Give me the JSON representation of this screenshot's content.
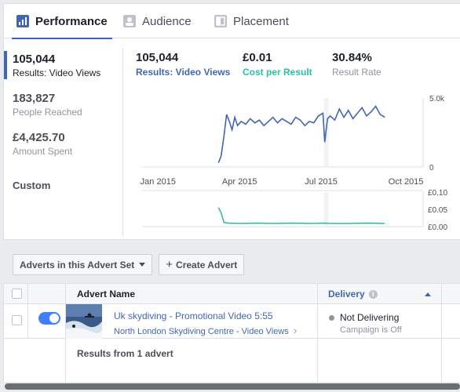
{
  "tabs": [
    {
      "label": "Performance",
      "icon": "bar-chart-icon",
      "active": true
    },
    {
      "label": "Audience",
      "icon": "audience-icon",
      "active": false
    },
    {
      "label": "Placement",
      "icon": "placement-icon",
      "active": false
    }
  ],
  "metrics": [
    {
      "value": "105,044",
      "label": "Results: Video Views",
      "selected": true
    },
    {
      "value": "183,827",
      "label": "People Reached",
      "selected": false
    },
    {
      "value": "£4,425.70",
      "label": "Amount Spent",
      "selected": false
    }
  ],
  "custom_label": "Custom",
  "summary": [
    {
      "value": "105,044",
      "label": "Results: Video Views",
      "color": "#4267b2"
    },
    {
      "value": "£0.01",
      "label": "Cost per Result",
      "color": "#2bbfa4"
    },
    {
      "value": "30.84%",
      "label": "Result Rate",
      "color": "#90949c"
    }
  ],
  "chart_data": [
    {
      "type": "line",
      "series": [
        {
          "name": "Results: Video Views",
          "color": "#4267b2"
        }
      ],
      "x_ticks": [
        "Jan 2015",
        "Apr 2015",
        "Jul 2015",
        "Oct 2015"
      ],
      "y_ticks": [
        "5.0k",
        "0"
      ],
      "ylim": [
        0,
        5000
      ],
      "x": [
        "2015-03-09",
        "2015-03-12",
        "2015-03-15",
        "2015-03-18",
        "2015-03-21",
        "2015-03-24",
        "2015-03-27",
        "2015-03-30",
        "2015-04-03",
        "2015-04-08",
        "2015-04-13",
        "2015-04-18",
        "2015-04-23",
        "2015-04-28",
        "2015-05-03",
        "2015-05-08",
        "2015-05-13",
        "2015-05-18",
        "2015-05-23",
        "2015-05-28",
        "2015-06-02",
        "2015-06-07",
        "2015-06-12",
        "2015-06-17",
        "2015-06-22",
        "2015-06-27",
        "2015-07-02",
        "2015-07-04",
        "2015-07-07",
        "2015-07-10",
        "2015-07-15",
        "2015-07-20",
        "2015-07-25",
        "2015-07-30",
        "2015-08-04",
        "2015-08-09",
        "2015-08-14",
        "2015-08-19",
        "2015-08-24",
        "2015-08-29",
        "2015-09-03",
        "2015-09-08"
      ],
      "values": [
        300,
        800,
        2200,
        3800,
        3300,
        2700,
        3600,
        3000,
        3300,
        3100,
        3500,
        3200,
        3400,
        3000,
        3300,
        3600,
        3200,
        3500,
        3300,
        3100,
        3600,
        3400,
        3000,
        3300,
        3200,
        3700,
        3900,
        1800,
        3500,
        3700,
        3400,
        4200,
        3600,
        4100,
        3500,
        3900,
        4300,
        3700,
        4000,
        4400,
        3800,
        3600
      ]
    },
    {
      "type": "line",
      "series": [
        {
          "name": "Cost per Result",
          "color": "#2bbfa4"
        }
      ],
      "y_ticks": [
        "£0.10",
        "£0.05",
        "£0.00"
      ],
      "ylim": [
        0,
        0.1
      ],
      "x": [
        "2015-03-09",
        "2015-03-12",
        "2015-03-15",
        "2015-03-20",
        "2015-04-01",
        "2015-04-20",
        "2015-05-10",
        "2015-05-30",
        "2015-06-20",
        "2015-07-04",
        "2015-07-10",
        "2015-07-30",
        "2015-08-20",
        "2015-09-08"
      ],
      "values": [
        0.055,
        0.04,
        0.012,
        0.01,
        0.009,
        0.01,
        0.009,
        0.01,
        0.009,
        0.01,
        0.009,
        0.009,
        0.01,
        0.009
      ]
    }
  ],
  "toolbar": {
    "adverts_dropdown": "Adverts in this Advert Set",
    "create_advert": "Create Advert"
  },
  "table": {
    "col_name": "Advert Name",
    "col_delivery": "Delivery",
    "row": {
      "name": "Uk skydiving - Promotional Video 5:55",
      "sub": "North London Skydiving Centre - Video Views",
      "delivery": "Not Delivering",
      "delivery_sub": "Campaign is Off",
      "toggle_on": true
    },
    "results_text": "Results from 1 advert"
  }
}
